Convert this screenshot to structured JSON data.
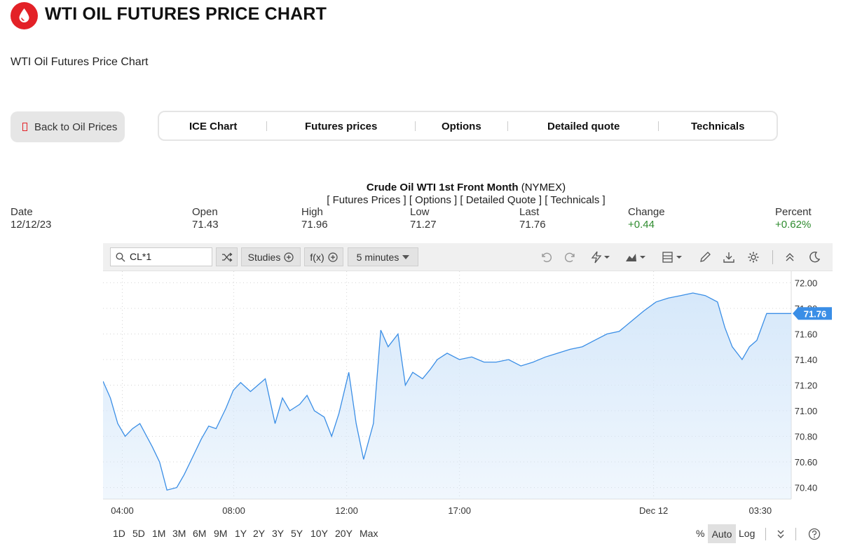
{
  "header": {
    "title": "WTI OIL FUTURES PRICE CHART",
    "subtitle": "WTI Oil Futures Price Chart",
    "logo_icon": "oil-drop-icon",
    "brand_color": "#e32127"
  },
  "back_button": {
    "label": "Back to Oil Prices",
    "icon": "back-icon"
  },
  "tabs": [
    {
      "label": "ICE Chart"
    },
    {
      "label": "Futures prices"
    },
    {
      "label": "Options"
    },
    {
      "label": "Detailed quote"
    },
    {
      "label": "Technicals"
    }
  ],
  "quote": {
    "title_bold": "Crude Oil WTI 1st Front Month",
    "exchange": "(NYMEX)",
    "links": "[ Futures Prices ] [ Options ] [ Detailed Quote ] [ Technicals ]",
    "headers": {
      "date": "Date",
      "open": "Open",
      "high": "High",
      "low": "Low",
      "last": "Last",
      "change": "Change",
      "percent": "Percent"
    },
    "values": {
      "date": "12/12/23",
      "open": "71.43",
      "high": "71.96",
      "low": "71.27",
      "last": "71.76",
      "change": "+0.44",
      "percent": "+0.62%"
    },
    "positive_color": "#2e8b2e"
  },
  "toolbar": {
    "symbol": "CL*1",
    "studies_label": "Studies",
    "fx_label": "f(x)",
    "interval_label": "5 minutes",
    "icons": [
      "search-icon",
      "shuffle-icon",
      "undo-icon",
      "redo-icon",
      "flash-icon",
      "chart-type-icon",
      "layout-icon",
      "pencil-icon",
      "download-icon",
      "gear-icon",
      "collapse-icon",
      "moon-icon"
    ]
  },
  "chart_data": {
    "type": "area",
    "y_ticks": [
      "72.00",
      "71.80",
      "71.60",
      "71.40",
      "71.20",
      "71.00",
      "70.80",
      "70.60",
      "70.40"
    ],
    "ylim": [
      70.31,
      72.09
    ],
    "x_ticks": [
      "04:00",
      "08:00",
      "12:00",
      "17:00",
      "Dec 12",
      "03:30"
    ],
    "last_label": "71.76",
    "line_color": "#3a8ee6",
    "fill_color": "#d6e8fa",
    "series": [
      {
        "x": [
          0,
          0.3,
          0.6,
          0.9,
          1.2,
          1.5,
          2.0,
          2.3,
          2.6,
          3.0,
          3.3,
          3.6,
          4.0,
          4.3,
          4.6,
          5.0,
          5.3,
          5.6,
          6.0,
          6.3,
          6.6,
          7.0,
          7.3,
          7.6,
          8.0,
          8.3,
          8.6,
          9.0,
          9.3,
          9.6,
          10.0,
          10.3,
          10.6,
          11.0,
          11.3,
          11.6,
          12.0,
          12.3,
          12.6,
          13.0,
          13.3,
          13.6,
          14.0,
          14.5,
          15.0,
          15.5,
          16.0,
          16.5,
          17.0,
          17.5,
          18.0,
          18.5,
          19.0,
          19.5,
          20.0,
          20.5,
          21.0,
          21.5,
          22.0,
          22.5,
          23.0,
          23.5,
          24.0,
          24.5,
          25.0,
          25.3,
          25.6,
          26.0,
          26.3,
          26.6,
          27.0,
          27.3,
          27.6,
          28.0
        ],
        "y": [
          71.23,
          71.1,
          70.9,
          70.8,
          70.86,
          70.9,
          70.72,
          70.6,
          70.38,
          70.4,
          70.5,
          70.62,
          70.78,
          70.88,
          70.86,
          71.02,
          71.16,
          71.22,
          71.15,
          71.2,
          71.25,
          70.9,
          71.1,
          71.0,
          71.05,
          71.12,
          71.0,
          70.95,
          70.8,
          70.98,
          71.3,
          70.9,
          70.62,
          70.9,
          71.63,
          71.5,
          71.6,
          71.2,
          71.3,
          71.25,
          71.32,
          71.4,
          71.45,
          71.4,
          71.42,
          71.38,
          71.38,
          71.4,
          71.35,
          71.38,
          71.42,
          71.45,
          71.48,
          71.5,
          71.55,
          71.6,
          71.62,
          71.7,
          71.78,
          71.85,
          71.88,
          71.9,
          71.92,
          71.9,
          71.85,
          71.65,
          71.5,
          71.4,
          71.5,
          71.55,
          71.76,
          71.76,
          71.76,
          71.76
        ]
      }
    ],
    "grid": true,
    "legend": "none"
  },
  "rangebar": {
    "ranges": [
      "1D",
      "5D",
      "1M",
      "3M",
      "6M",
      "9M",
      "1Y",
      "2Y",
      "3Y",
      "5Y",
      "10Y",
      "20Y",
      "Max"
    ],
    "percent_label": "%",
    "auto_label": "Auto",
    "log_label": "Log"
  }
}
